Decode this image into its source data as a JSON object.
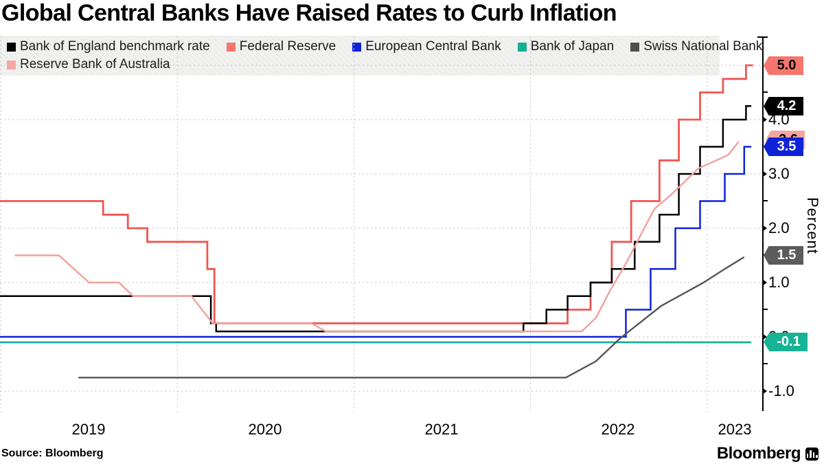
{
  "title": "Global Central Banks Have Raised Rates to Curb Inflation",
  "source": "Source:  Bloomberg",
  "brand": {
    "wordmark": "Bloomberg"
  },
  "legend": {
    "items": [
      {
        "label": "Bank of England benchmark rate",
        "color": "#000000"
      },
      {
        "label": "Federal Reserve",
        "color": "#f4766d"
      },
      {
        "label": "European Central Bank",
        "color": "#0e22d8"
      },
      {
        "label": "Bank of Japan",
        "color": "#15b093"
      },
      {
        "label": "Swiss National Bank",
        "color": "#4f4f4f"
      },
      {
        "label": "Reserve Bank of Australia",
        "color": "#f4a7a2"
      }
    ]
  },
  "y_axis": {
    "title": "Percent",
    "labels": [
      {
        "text": "4.0",
        "value": 4.0
      },
      {
        "text": "3.0",
        "value": 3.0
      },
      {
        "text": "2.0",
        "value": 2.0
      },
      {
        "text": "1.0",
        "value": 1.0
      },
      {
        "text": "0.0",
        "value": 0.0
      },
      {
        "text": "-1.0",
        "value": -1.0
      }
    ]
  },
  "x_axis": {
    "labels": [
      {
        "text": "2019"
      },
      {
        "text": "2020"
      },
      {
        "text": "2021"
      },
      {
        "text": "2022"
      },
      {
        "text": "2023"
      }
    ]
  },
  "tags": [
    {
      "id": "fed",
      "text": "5.0",
      "fill": "#f4766d",
      "text_color": "#000000",
      "value": 5.0
    },
    {
      "id": "boe",
      "text": "4.2",
      "fill": "#000000",
      "text_color": "#ffffff",
      "value": 4.25
    },
    {
      "id": "rba",
      "text": "3.6",
      "fill": "#f4a7a2",
      "text_color": "#000000",
      "value": 3.6
    },
    {
      "id": "ecb",
      "text": "3.5",
      "fill": "#0e22d8",
      "text_color": "#ffffff",
      "value": 3.5
    },
    {
      "id": "snb",
      "text": "1.5",
      "fill": "#5c5c5c",
      "text_color": "#ffffff",
      "value": 1.5
    },
    {
      "id": "boj",
      "text": "-0.1",
      "fill": "#16b495",
      "text_color": "#ffffff",
      "value": -0.1
    }
  ],
  "chart_data": {
    "type": "line",
    "xlabel": "",
    "ylabel": "Percent",
    "x_domain": [
      2019.0,
      2023.32
    ],
    "ylim": [
      -1.4,
      5.5
    ],
    "grid": true,
    "ygrid_values": [
      5,
      4,
      3,
      2,
      1,
      0,
      -1
    ],
    "xgrid_years": [
      2019,
      2020,
      2021,
      2022,
      2023
    ],
    "legend_position": "top",
    "series": [
      {
        "id": "fed",
        "name": "Federal Reserve",
        "color": "#f05550",
        "mode": "step",
        "width": 2.8,
        "points": [
          [
            2018.996,
            2.5
          ],
          [
            2019.58,
            2.25
          ],
          [
            2019.72,
            2.0
          ],
          [
            2019.83,
            1.75
          ],
          [
            2020.17,
            1.25
          ],
          [
            2020.21,
            0.25
          ],
          [
            2022.21,
            0.5
          ],
          [
            2022.34,
            1.0
          ],
          [
            2022.46,
            1.75
          ],
          [
            2022.57,
            2.5
          ],
          [
            2022.73,
            3.25
          ],
          [
            2022.84,
            4.0
          ],
          [
            2022.96,
            4.5
          ],
          [
            2023.09,
            4.75
          ],
          [
            2023.22,
            5.0
          ]
        ],
        "end": 2023.26
      },
      {
        "id": "ecb",
        "name": "European Central Bank",
        "color": "#0e22d8",
        "mode": "step",
        "width": 2.5,
        "points": [
          [
            2018.996,
            0.0
          ],
          [
            2022.54,
            0.5
          ],
          [
            2022.68,
            1.25
          ],
          [
            2022.82,
            2.0
          ],
          [
            2022.96,
            2.5
          ],
          [
            2023.1,
            3.0
          ],
          [
            2023.21,
            3.5
          ]
        ],
        "end": 2023.25
      },
      {
        "id": "boj",
        "name": "Bank of Japan",
        "color": "#15b093",
        "mode": "step",
        "width": 2.6,
        "points": [
          [
            2018.996,
            -0.1
          ]
        ],
        "end": 2023.25
      },
      {
        "id": "snb",
        "name": "Swiss National Bank",
        "color": "#545454",
        "mode": "linear",
        "width": 2.4,
        "points": [
          [
            2019.44,
            -0.75
          ],
          [
            2022.2,
            -0.75
          ],
          [
            2022.37,
            -0.45
          ],
          [
            2022.51,
            -0.02
          ],
          [
            2022.74,
            0.57
          ],
          [
            2022.98,
            1.0
          ],
          [
            2023.1,
            1.25
          ],
          [
            2023.21,
            1.47
          ]
        ]
      },
      {
        "id": "boe",
        "name": "Bank of England benchmark rate",
        "color": "#000000",
        "mode": "step",
        "width": 2.5,
        "points": [
          [
            2018.996,
            0.75
          ],
          [
            2020.19,
            0.25
          ],
          [
            2020.22,
            0.1
          ],
          [
            2021.96,
            0.25
          ],
          [
            2022.09,
            0.5
          ],
          [
            2022.21,
            0.75
          ],
          [
            2022.34,
            1.0
          ],
          [
            2022.46,
            1.25
          ],
          [
            2022.59,
            1.75
          ],
          [
            2022.73,
            2.25
          ],
          [
            2022.84,
            3.0
          ],
          [
            2022.96,
            3.5
          ],
          [
            2023.09,
            4.0
          ],
          [
            2023.22,
            4.25
          ]
        ],
        "end": 2023.25
      },
      {
        "id": "rba",
        "name": "Reserve Bank of Australia",
        "color": "#f2a09c",
        "mode": "linear",
        "width": 2.4,
        "points": [
          [
            2019.08,
            1.5
          ],
          [
            2019.33,
            1.5
          ],
          [
            2019.5,
            1.0
          ],
          [
            2019.67,
            1.0
          ],
          [
            2019.75,
            0.75
          ],
          [
            2020.08,
            0.75
          ],
          [
            2020.2,
            0.25
          ],
          [
            2020.76,
            0.25
          ],
          [
            2020.84,
            0.1
          ],
          [
            2022.29,
            0.1
          ],
          [
            2022.37,
            0.35
          ],
          [
            2022.45,
            0.85
          ],
          [
            2022.54,
            1.35
          ],
          [
            2022.62,
            1.85
          ],
          [
            2022.7,
            2.35
          ],
          [
            2022.79,
            2.6
          ],
          [
            2022.87,
            2.85
          ],
          [
            2022.95,
            3.1
          ],
          [
            2023.12,
            3.35
          ],
          [
            2023.18,
            3.6
          ]
        ]
      }
    ]
  }
}
